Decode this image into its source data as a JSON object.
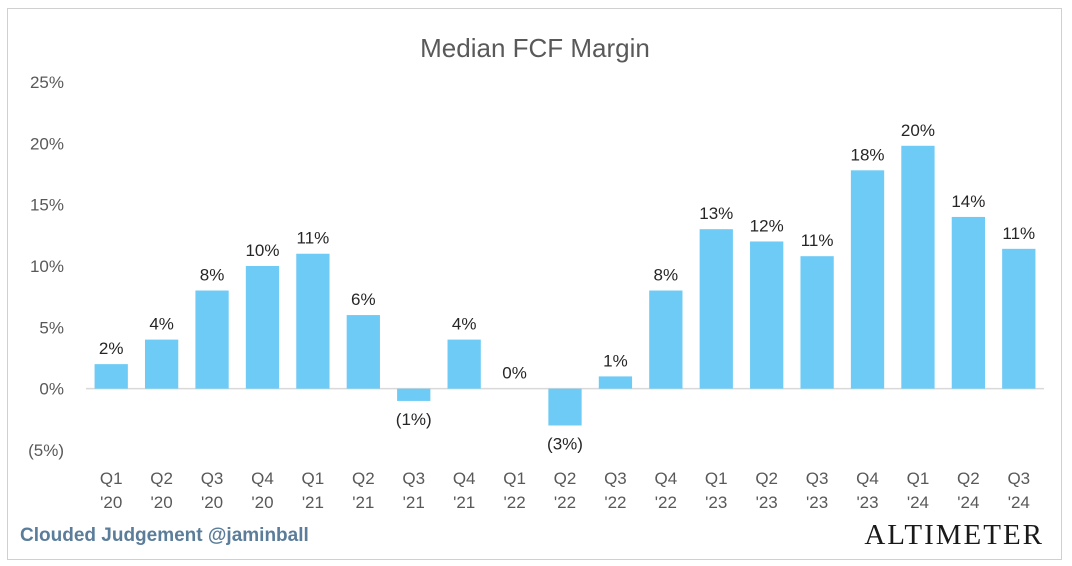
{
  "chart_data": {
    "type": "bar",
    "title": "Median FCF Margin",
    "categories": [
      [
        "Q1",
        "'20"
      ],
      [
        "Q2",
        "'20"
      ],
      [
        "Q3",
        "'20"
      ],
      [
        "Q4",
        "'20"
      ],
      [
        "Q1",
        "'21"
      ],
      [
        "Q2",
        "'21"
      ],
      [
        "Q3",
        "'21"
      ],
      [
        "Q4",
        "'21"
      ],
      [
        "Q1",
        "'22"
      ],
      [
        "Q2",
        "'22"
      ],
      [
        "Q3",
        "'22"
      ],
      [
        "Q4",
        "'22"
      ],
      [
        "Q1",
        "'23"
      ],
      [
        "Q2",
        "'23"
      ],
      [
        "Q3",
        "'23"
      ],
      [
        "Q4",
        "'23"
      ],
      [
        "Q1",
        "'24"
      ],
      [
        "Q2",
        "'24"
      ],
      [
        "Q3",
        "'24"
      ]
    ],
    "values": [
      2,
      4,
      8,
      10,
      11,
      6,
      -1,
      4,
      0,
      -3,
      1,
      8,
      13,
      12,
      10.8,
      17.8,
      19.8,
      14,
      11.4
    ],
    "data_labels": [
      "2%",
      "4%",
      "8%",
      "10%",
      "11%",
      "6%",
      "(1%)",
      "4%",
      "0%",
      "(3%)",
      "1%",
      "8%",
      "13%",
      "12%",
      "11%",
      "18%",
      "20%",
      "14%",
      "11%"
    ],
    "ylim": [
      -5,
      25
    ],
    "yticks": [
      -5,
      0,
      5,
      10,
      15,
      20,
      25
    ],
    "ytick_labels": [
      "(5%)",
      "0%",
      "5%",
      "10%",
      "15%",
      "20%",
      "25%"
    ],
    "grid": false,
    "bar_color": "#6ecbf5",
    "xlabel": "",
    "ylabel": ""
  },
  "footer": {
    "source": "Clouded Judgement @jaminball",
    "brand": "ALTIMETER"
  }
}
